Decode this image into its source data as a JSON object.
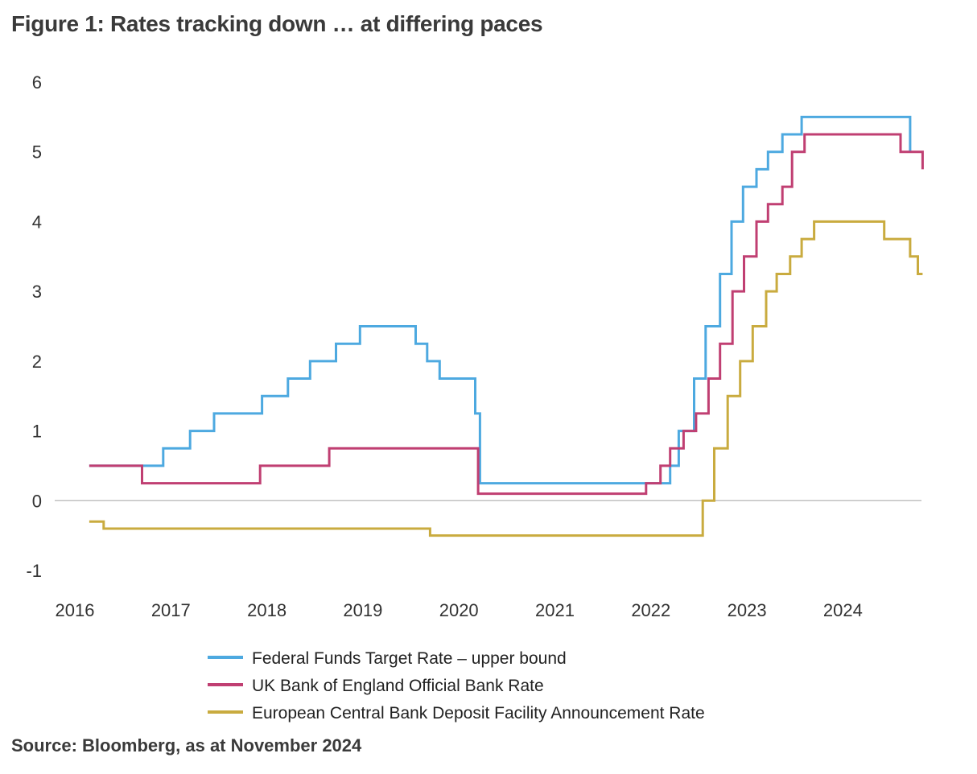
{
  "title": "Figure 1: Rates tracking down … at differing paces",
  "source": "Source: Bloomberg, as at November 2024",
  "chart_data": {
    "type": "line",
    "step": true,
    "title": "Figure 1: Rates tracking down … at differing paces",
    "xlabel": "",
    "ylabel": "",
    "xlim": [
      2016.0,
      2024.9
    ],
    "ylim": [
      -1,
      6
    ],
    "x_ticks": [
      "2016",
      "2017",
      "2018",
      "2019",
      "2020",
      "2021",
      "2022",
      "2023",
      "2024"
    ],
    "y_ticks": [
      "-1",
      "0",
      "1",
      "2",
      "3",
      "4",
      "5",
      "6"
    ],
    "grid": false,
    "zero_line": true,
    "legend_position": "bottom",
    "series": [
      {
        "name": "Federal Funds Target Rate – upper bound",
        "color": "#4da9e0",
        "points": [
          [
            2016.15,
            0.5
          ],
          [
            2016.92,
            0.75
          ],
          [
            2017.2,
            1.0
          ],
          [
            2017.45,
            1.25
          ],
          [
            2017.95,
            1.5
          ],
          [
            2018.22,
            1.75
          ],
          [
            2018.45,
            2.0
          ],
          [
            2018.72,
            2.25
          ],
          [
            2018.97,
            2.5
          ],
          [
            2019.55,
            2.25
          ],
          [
            2019.67,
            2.0
          ],
          [
            2019.8,
            1.75
          ],
          [
            2020.17,
            1.25
          ],
          [
            2020.22,
            0.25
          ],
          [
            2022.2,
            0.5
          ],
          [
            2022.29,
            1.0
          ],
          [
            2022.45,
            1.75
          ],
          [
            2022.57,
            2.5
          ],
          [
            2022.72,
            3.25
          ],
          [
            2022.84,
            4.0
          ],
          [
            2022.96,
            4.5
          ],
          [
            2023.1,
            4.75
          ],
          [
            2023.22,
            5.0
          ],
          [
            2023.37,
            5.25
          ],
          [
            2023.57,
            5.5
          ],
          [
            2024.7,
            5.0
          ]
        ]
      },
      {
        "name": "UK Bank of England Official Bank Rate",
        "color": "#c03f72",
        "points": [
          [
            2016.15,
            0.5
          ],
          [
            2016.7,
            0.25
          ],
          [
            2017.93,
            0.5
          ],
          [
            2018.65,
            0.75
          ],
          [
            2020.2,
            0.1
          ],
          [
            2021.95,
            0.25
          ],
          [
            2022.1,
            0.5
          ],
          [
            2022.2,
            0.75
          ],
          [
            2022.34,
            1.0
          ],
          [
            2022.47,
            1.25
          ],
          [
            2022.6,
            1.75
          ],
          [
            2022.72,
            2.25
          ],
          [
            2022.85,
            3.0
          ],
          [
            2022.97,
            3.5
          ],
          [
            2023.1,
            4.0
          ],
          [
            2023.22,
            4.25
          ],
          [
            2023.37,
            4.5
          ],
          [
            2023.47,
            5.0
          ],
          [
            2023.6,
            5.25
          ],
          [
            2024.6,
            5.0
          ],
          [
            2024.83,
            4.75
          ]
        ]
      },
      {
        "name": "European Central Bank Deposit Facility Announcement Rate",
        "color": "#c9ab3f",
        "points": [
          [
            2016.15,
            -0.3
          ],
          [
            2016.3,
            -0.4
          ],
          [
            2019.7,
            -0.5
          ],
          [
            2022.54,
            0.0
          ],
          [
            2022.66,
            0.75
          ],
          [
            2022.8,
            1.5
          ],
          [
            2022.93,
            2.0
          ],
          [
            2023.06,
            2.5
          ],
          [
            2023.2,
            3.0
          ],
          [
            2023.31,
            3.25
          ],
          [
            2023.45,
            3.5
          ],
          [
            2023.57,
            3.75
          ],
          [
            2023.7,
            4.0
          ],
          [
            2024.43,
            3.75
          ],
          [
            2024.7,
            3.5
          ],
          [
            2024.78,
            3.25
          ],
          [
            2024.83,
            3.25
          ]
        ]
      }
    ]
  }
}
